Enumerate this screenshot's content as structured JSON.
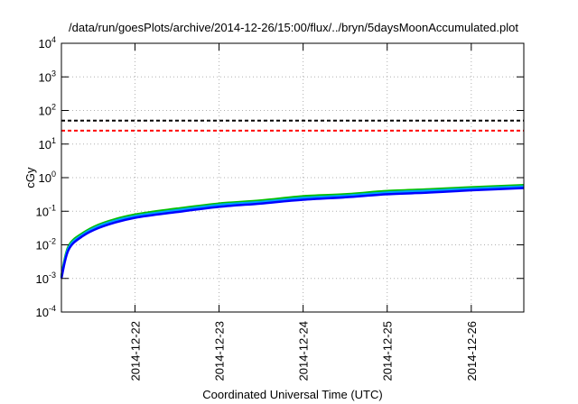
{
  "chart_data": {
    "type": "line",
    "title": "/data/run/goesPlots/archive/2014-12-26/15:00/flux/../bryn/5daysMoonAccumulated.plot",
    "xlabel": "Coordinated Universal Time (UTC)",
    "ylabel": "cGy",
    "y_scale": "log",
    "ylim": [
      "1e-4",
      "1e4"
    ],
    "xlim": [
      "2014-12-21T03:00",
      "2014-12-26T15:00"
    ],
    "grid": true,
    "x_ticks": [
      "2014-12-22",
      "2014-12-23",
      "2014-12-24",
      "2014-12-25",
      "2014-12-26"
    ],
    "y_ticks": [
      {
        "value": "1e-4",
        "base": "10",
        "exp": "-4"
      },
      {
        "value": "1e-3",
        "base": "10",
        "exp": "-3"
      },
      {
        "value": "1e-2",
        "base": "10",
        "exp": "-2"
      },
      {
        "value": "1e-1",
        "base": "10",
        "exp": "-1"
      },
      {
        "value": "1e0",
        "base": "10",
        "exp": "0"
      },
      {
        "value": "1e1",
        "base": "10",
        "exp": "1"
      },
      {
        "value": "1e2",
        "base": "10",
        "exp": "2"
      },
      {
        "value": "1e3",
        "base": "10",
        "exp": "3"
      },
      {
        "value": "1e4",
        "base": "10",
        "exp": "4"
      }
    ],
    "series": [
      {
        "color": "#00c000",
        "points": [
          [
            "2014-12-21T03:00",
            "0.0012"
          ],
          [
            "2014-12-21T05:00",
            "0.009"
          ],
          [
            "2014-12-21T09:00",
            "0.022"
          ],
          [
            "2014-12-21T15:00",
            "0.045"
          ],
          [
            "2014-12-22T00:00",
            "0.08"
          ],
          [
            "2014-12-22T12:00",
            "0.12"
          ],
          [
            "2014-12-23T00:00",
            "0.17"
          ],
          [
            "2014-12-23T12:00",
            "0.21"
          ],
          [
            "2014-12-24T00:00",
            "0.28"
          ],
          [
            "2014-12-24T12:00",
            "0.32"
          ],
          [
            "2014-12-25T00:00",
            "0.40"
          ],
          [
            "2014-12-25T12:00",
            "0.45"
          ],
          [
            "2014-12-26T00:00",
            "0.52"
          ],
          [
            "2014-12-26T15:00",
            "0.60"
          ]
        ]
      },
      {
        "color": "#00a0ff",
        "points": [
          [
            "2014-12-21T03:00",
            "0.0011"
          ],
          [
            "2014-12-21T05:00",
            "0.008"
          ],
          [
            "2014-12-21T09:00",
            "0.020"
          ],
          [
            "2014-12-21T15:00",
            "0.041"
          ],
          [
            "2014-12-22T00:00",
            "0.072"
          ],
          [
            "2014-12-22T12:00",
            "0.108"
          ],
          [
            "2014-12-23T00:00",
            "0.155"
          ],
          [
            "2014-12-23T12:00",
            "0.19"
          ],
          [
            "2014-12-24T00:00",
            "0.25"
          ],
          [
            "2014-12-24T12:00",
            "0.29"
          ],
          [
            "2014-12-25T00:00",
            "0.36"
          ],
          [
            "2014-12-25T12:00",
            "0.41"
          ],
          [
            "2014-12-26T00:00",
            "0.47"
          ],
          [
            "2014-12-26T15:00",
            "0.55"
          ]
        ]
      },
      {
        "color": "#0000ff",
        "points": [
          [
            "2014-12-21T03:00",
            "0.0010"
          ],
          [
            "2014-12-21T05:00",
            "0.007"
          ],
          [
            "2014-12-21T09:00",
            "0.018"
          ],
          [
            "2014-12-21T15:00",
            "0.036"
          ],
          [
            "2014-12-22T00:00",
            "0.064"
          ],
          [
            "2014-12-22T12:00",
            "0.095"
          ],
          [
            "2014-12-23T00:00",
            "0.135"
          ],
          [
            "2014-12-23T12:00",
            "0.17"
          ],
          [
            "2014-12-24T00:00",
            "0.22"
          ],
          [
            "2014-12-24T12:00",
            "0.26"
          ],
          [
            "2014-12-25T00:00",
            "0.32"
          ],
          [
            "2014-12-25T12:00",
            "0.36"
          ],
          [
            "2014-12-26T00:00",
            "0.42"
          ],
          [
            "2014-12-26T15:00",
            "0.49"
          ]
        ]
      }
    ],
    "reference_lines": [
      {
        "value": "50",
        "color": "#000000",
        "style": "dashed"
      },
      {
        "value": "25",
        "color": "#ff0000",
        "style": "dashed"
      }
    ]
  }
}
